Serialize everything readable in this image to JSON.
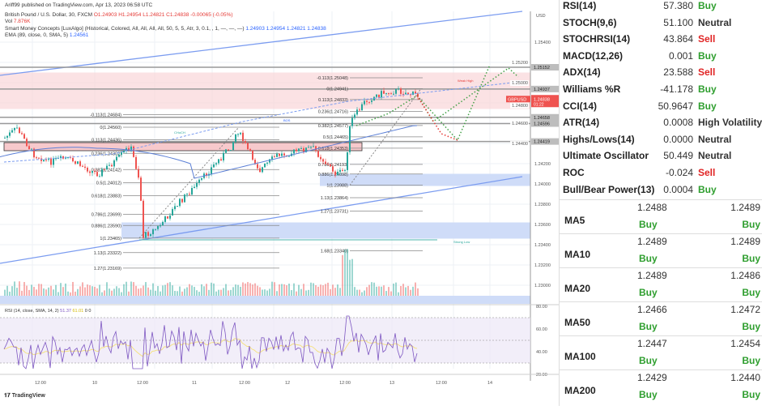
{
  "header": {
    "publisher": "Ariff99 published on TradingView.com, Apr 13, 2023 06:58 UTC",
    "symbol": "British Pound / U.S. Dollar, 30, FXCM",
    "open": "O1.24903",
    "high": "H1.24954",
    "low": "L1.24821",
    "close": "C1.24838",
    "change": "-0.00065 (-0.05%)",
    "vol_label": "Vol",
    "vol": "7.876K",
    "smc": "Smart Money Concepts [LuxAlgo] (Historical, Colored, All, All, All, All, 50, 5, 5, Atr, 3, 0.1, , 1, —, —, —)",
    "smc_vals": "1.24903 1.24954 1.24821 1.24838",
    "ema": "EMA (89, close, 0, SMA, 5)",
    "ema_val": "1.24561"
  },
  "price_axis": {
    "currency": "USD",
    "ticks": [
      "1.25400",
      "1.25200",
      "1.25000",
      "1.24800",
      "1.24600",
      "1.24400",
      "1.24200",
      "1.24000",
      "1.23800",
      "1.23600",
      "1.23400",
      "1.23200",
      "1.23000"
    ],
    "tags": [
      {
        "text": "1.25152",
        "p": 1.25152
      },
      {
        "text": "1.24937",
        "p": 1.24937
      },
      {
        "text": "1.24658",
        "p": 1.24658
      },
      {
        "text": "1.24596",
        "p": 1.24596
      },
      {
        "text": "1.24419",
        "p": 1.24419
      }
    ],
    "last": {
      "symbol": "GBPUSD",
      "price": "1.24838",
      "p": 1.24838,
      "countdown": "01:22"
    }
  },
  "fib_left": [
    [
      "-0.113(1.24684)",
      1.24684
    ],
    [
      "0(1.24560)",
      1.2456
    ],
    [
      "0.113(1.24436)",
      1.24436
    ],
    [
      "0.236(1.24302)",
      1.24302
    ],
    [
      "0.382(1.24142)",
      1.24142
    ],
    [
      "0.5(1.24012)",
      1.24012
    ],
    [
      "0.618(1.23883)",
      1.23883
    ],
    [
      "0.786(1.23699)",
      1.23699
    ],
    [
      "0.886(1.23590)",
      1.2359
    ],
    [
      "1(1.23465)",
      1.23465
    ],
    [
      "1.13(1.23322)",
      1.23322
    ],
    [
      "1.27(1.23169)",
      1.23169
    ]
  ],
  "fib_right": [
    [
      "-0.113(1.25048)",
      1.25048
    ],
    [
      "0(1.24941)",
      1.24941
    ],
    [
      "0.113(1.24833)",
      1.24833
    ],
    [
      "0.236(1.24716)",
      1.24716
    ],
    [
      "0.382(1.24577)",
      1.24577
    ],
    [
      "0.5(1.24465)",
      1.24465
    ],
    [
      "0.618(1.24353)",
      1.24353
    ],
    [
      "0.786(1.24193)",
      1.24193
    ],
    [
      "0.886(1.24098)",
      1.24098
    ],
    [
      "1(1.23988)",
      1.23988
    ],
    [
      "1.13(1.23864)",
      1.23864
    ],
    [
      "1.27(1.23731)",
      1.23731
    ],
    [
      "1.68(1.23340)",
      1.2334
    ]
  ],
  "annotations": {
    "bos": "BOS",
    "choch": "CHoCH",
    "weak_high": "Weak High",
    "strong_low": "Strong Low"
  },
  "rsi": {
    "label": "RSI (14, close, SMA, 14, 2)",
    "rsi": "51.37",
    "sma": "61.01",
    "extra": "0 0",
    "ticks": [
      "80.00",
      "60.00",
      "40.00",
      "20.00"
    ]
  },
  "time_axis": [
    "12:00",
    "10",
    "12:00",
    "11",
    "12:00",
    "12",
    "12:00",
    "13",
    "12:00",
    "14"
  ],
  "footer": {
    "brand": "TradingView"
  },
  "oscillators": [
    {
      "name": "RSI(14)",
      "value": "57.380",
      "signal": "Buy"
    },
    {
      "name": "STOCH(9,6)",
      "value": "51.100",
      "signal": "Neutral"
    },
    {
      "name": "STOCHRSI(14)",
      "value": "43.864",
      "signal": "Sell"
    },
    {
      "name": "MACD(12,26)",
      "value": "0.001",
      "signal": "Buy"
    },
    {
      "name": "ADX(14)",
      "value": "23.588",
      "signal": "Sell"
    },
    {
      "name": "Williams %R",
      "value": "-41.178",
      "signal": "Buy"
    },
    {
      "name": "CCI(14)",
      "value": "50.9647",
      "signal": "Buy"
    },
    {
      "name": "ATR(14)",
      "value": "0.0008",
      "signal": "High Volatility"
    },
    {
      "name": "Highs/Lows(14)",
      "value": "0.0000",
      "signal": "Neutral"
    },
    {
      "name": "Ultimate Oscillator",
      "value": "50.449",
      "signal": "Neutral"
    },
    {
      "name": "ROC",
      "value": "-0.024",
      "signal": "Sell"
    },
    {
      "name": "Bull/Bear Power(13)",
      "value": "0.0004",
      "signal": "Buy"
    }
  ],
  "moving_averages": [
    {
      "name": "MA5",
      "simple": "1.2488",
      "simple_signal": "Buy",
      "exp": "1.2489",
      "exp_signal": "Buy"
    },
    {
      "name": "MA10",
      "simple": "1.2489",
      "simple_signal": "Buy",
      "exp": "1.2489",
      "exp_signal": "Buy"
    },
    {
      "name": "MA20",
      "simple": "1.2489",
      "simple_signal": "Buy",
      "exp": "1.2486",
      "exp_signal": "Buy"
    },
    {
      "name": "MA50",
      "simple": "1.2466",
      "simple_signal": "Buy",
      "exp": "1.2472",
      "exp_signal": "Buy"
    },
    {
      "name": "MA100",
      "simple": "1.2447",
      "simple_signal": "Buy",
      "exp": "1.2454",
      "exp_signal": "Buy"
    },
    {
      "name": "MA200",
      "simple": "1.2429",
      "simple_signal": "Buy",
      "exp": "1.2440",
      "exp_signal": "Buy"
    }
  ],
  "colors": {
    "buy": "#2e9e2e",
    "sell": "#e02424",
    "up": "#26a69a",
    "down": "#ef5350",
    "ema": "#5b7fd6",
    "rsi": "#7e57c2",
    "rsi_sma": "#f5e07a"
  }
}
